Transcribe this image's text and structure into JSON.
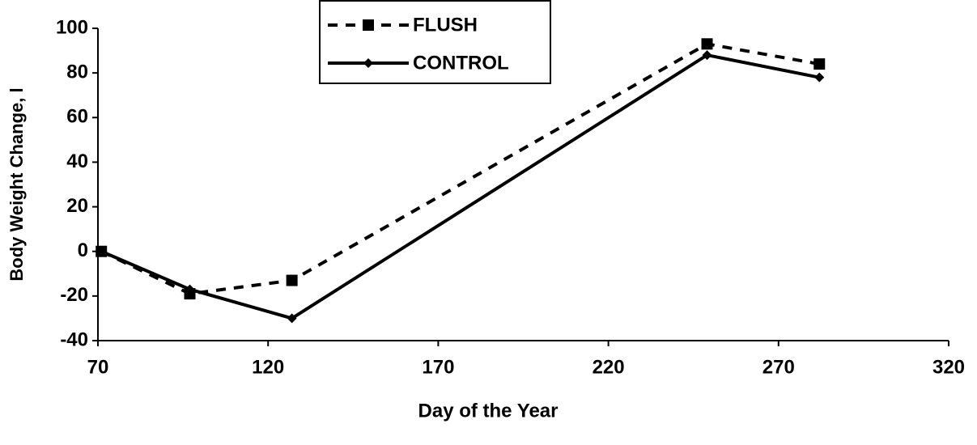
{
  "chart_data": {
    "type": "line",
    "xlabel": "Day of the Year",
    "ylabel": "Body Weight Change, l",
    "x": [
      71,
      97,
      127,
      249,
      282
    ],
    "series": [
      {
        "name": "FLUSH",
        "color": "#000000",
        "dash": true,
        "marker": "square",
        "values": [
          0,
          -19,
          -13,
          93,
          84
        ]
      },
      {
        "name": "CONTROL",
        "color": "#000000",
        "dash": false,
        "marker": "diamond",
        "values": [
          0,
          -17,
          -30,
          88,
          78
        ]
      }
    ],
    "xlim": [
      70,
      320
    ],
    "xticks": [
      70,
      120,
      170,
      220,
      270,
      320
    ],
    "ylim": [
      -40,
      100
    ],
    "yticks": [
      -40,
      -20,
      0,
      20,
      40,
      60,
      80,
      100
    ]
  }
}
